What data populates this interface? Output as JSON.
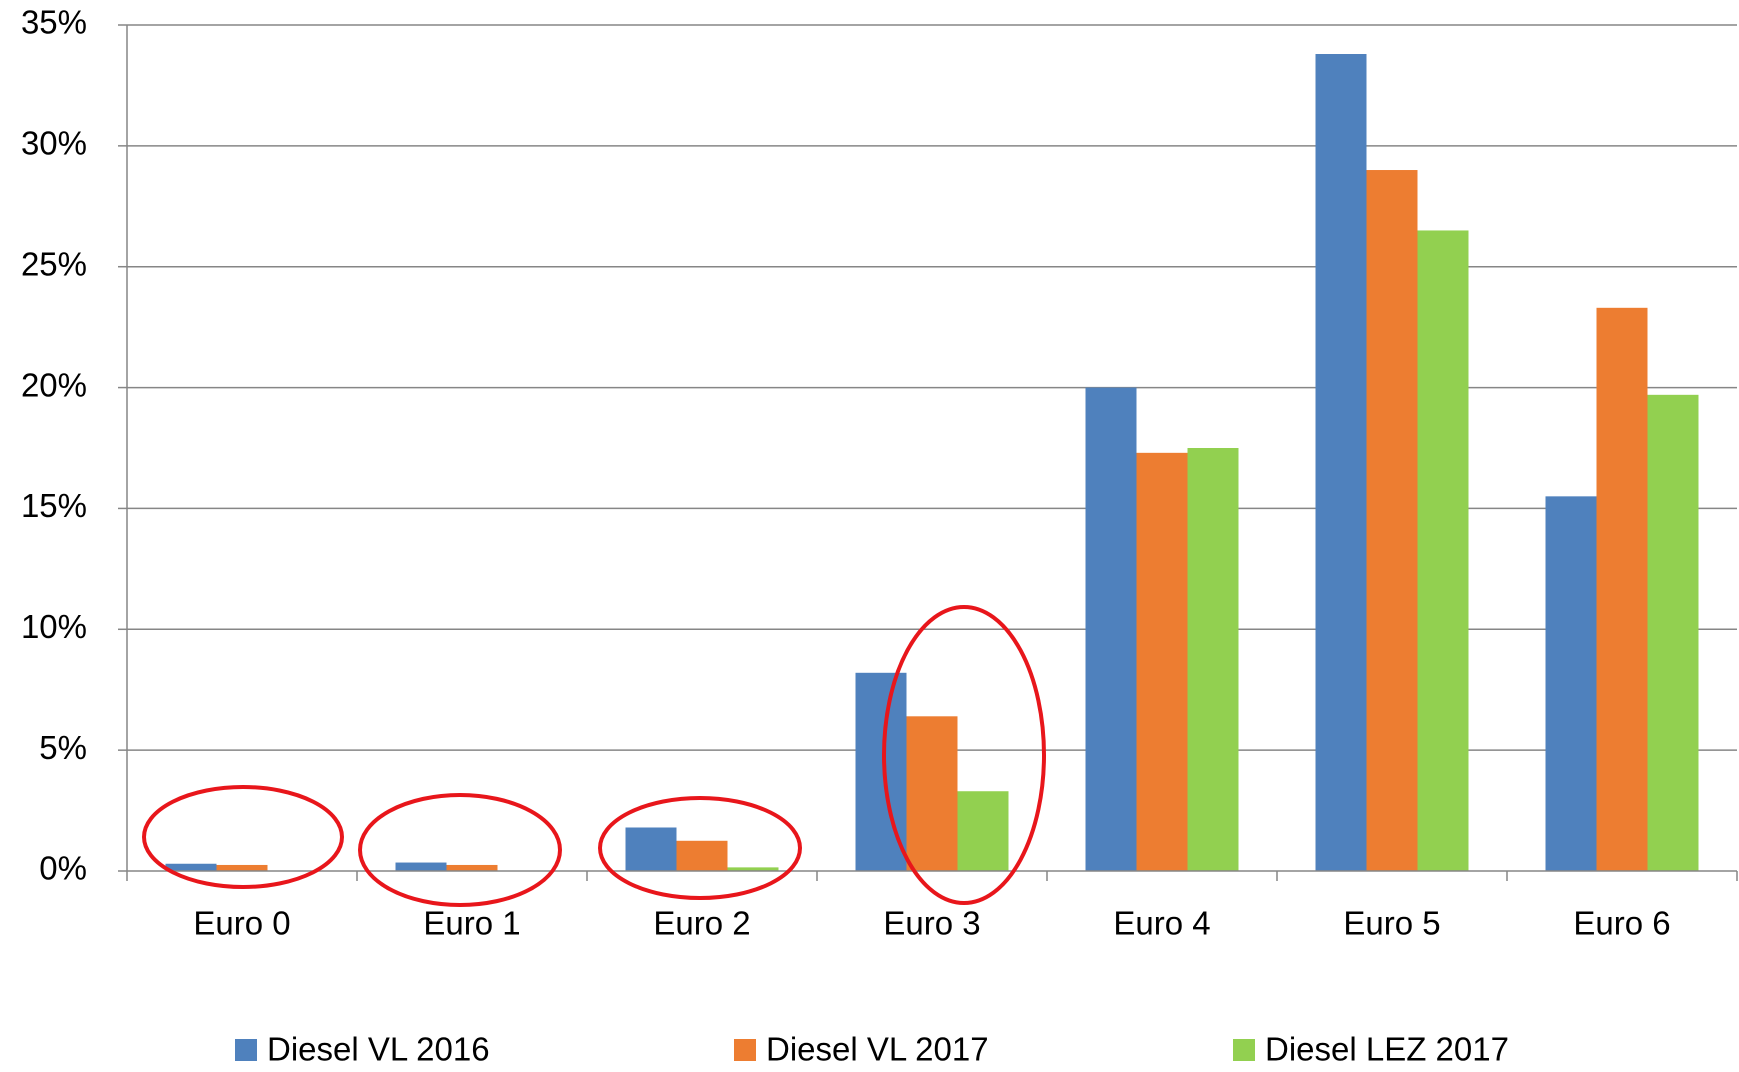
{
  "chart_data": {
    "type": "bar",
    "categories": [
      "Euro 0",
      "Euro 1",
      "Euro 2",
      "Euro 3",
      "Euro 4",
      "Euro 5",
      "Euro 6"
    ],
    "series": [
      {
        "name": "Diesel VL 2016",
        "color": "#4f81bd",
        "values": [
          0.3,
          0.35,
          1.8,
          8.2,
          20.0,
          33.8,
          15.5
        ]
      },
      {
        "name": "Diesel VL 2017",
        "color": "#ed7d31",
        "values": [
          0.25,
          0.25,
          1.25,
          6.4,
          17.3,
          29.0,
          23.3
        ]
      },
      {
        "name": "Diesel LEZ 2017",
        "color": "#92d050",
        "values": [
          0,
          0,
          0.15,
          3.3,
          17.5,
          26.5,
          19.7
        ]
      }
    ],
    "ylim": [
      0,
      35
    ],
    "yticks": [
      {
        "value": 0,
        "label": "0%"
      },
      {
        "value": 5,
        "label": "5%"
      },
      {
        "value": 10,
        "label": "10%"
      },
      {
        "value": 15,
        "label": "15%"
      },
      {
        "value": 20,
        "label": "20%"
      },
      {
        "value": 25,
        "label": "25%"
      },
      {
        "value": 30,
        "label": "30%"
      },
      {
        "value": 35,
        "label": "35%"
      }
    ],
    "grid": true,
    "legend": "bottom"
  }
}
